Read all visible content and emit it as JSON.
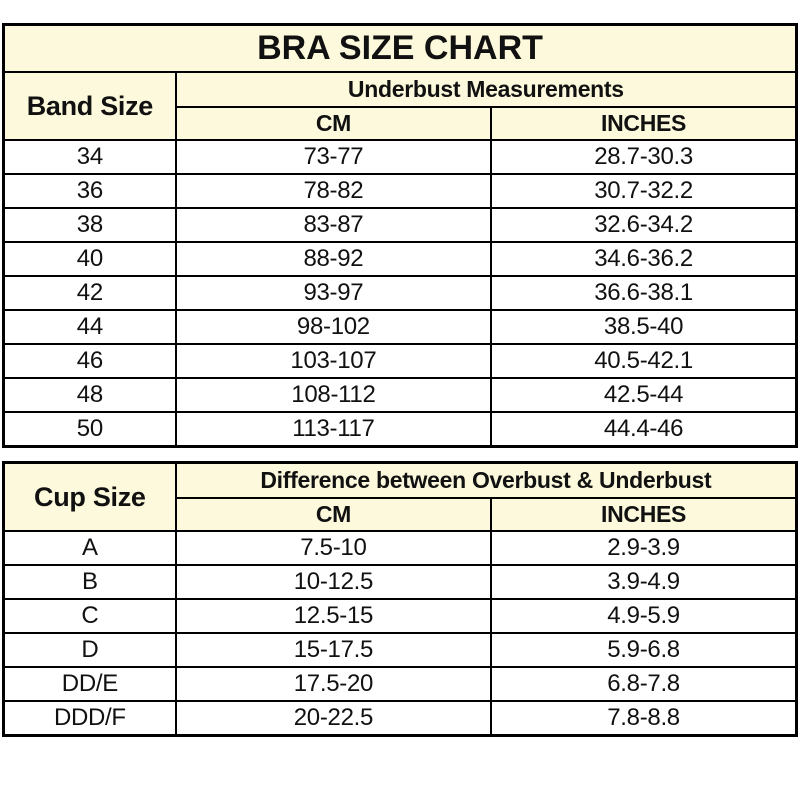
{
  "colors": {
    "header_bg": "#FCF9DC",
    "border": "#000000",
    "text": "#111111",
    "row_bg": "#ffffff"
  },
  "chart_data": [
    {
      "type": "table",
      "title": "BRA SIZE CHART",
      "corner_header": "Band Size",
      "group_header": "Underbust Measurements",
      "sub_headers": [
        "CM",
        "INCHES"
      ],
      "rows": [
        [
          "34",
          "73-77",
          "28.7-30.3"
        ],
        [
          "36",
          "78-82",
          "30.7-32.2"
        ],
        [
          "38",
          "83-87",
          "32.6-34.2"
        ],
        [
          "40",
          "88-92",
          "34.6-36.2"
        ],
        [
          "42",
          "93-97",
          "36.6-38.1"
        ],
        [
          "44",
          "98-102",
          "38.5-40"
        ],
        [
          "46",
          "103-107",
          "40.5-42.1"
        ],
        [
          "48",
          "108-112",
          "42.5-44"
        ],
        [
          "50",
          "113-117",
          "44.4-46"
        ]
      ]
    },
    {
      "type": "table",
      "title": "",
      "corner_header": "Cup Size",
      "group_header": "Difference between Overbust & Underbust",
      "sub_headers": [
        "CM",
        "INCHES"
      ],
      "rows": [
        [
          "A",
          "7.5-10",
          "2.9-3.9"
        ],
        [
          "B",
          "10-12.5",
          "3.9-4.9"
        ],
        [
          "C",
          "12.5-15",
          "4.9-5.9"
        ],
        [
          "D",
          "15-17.5",
          "5.9-6.8"
        ],
        [
          "DD/E",
          "17.5-20",
          "6.8-7.8"
        ],
        [
          "DDD/F",
          "20-22.5",
          "7.8-8.8"
        ]
      ]
    }
  ]
}
